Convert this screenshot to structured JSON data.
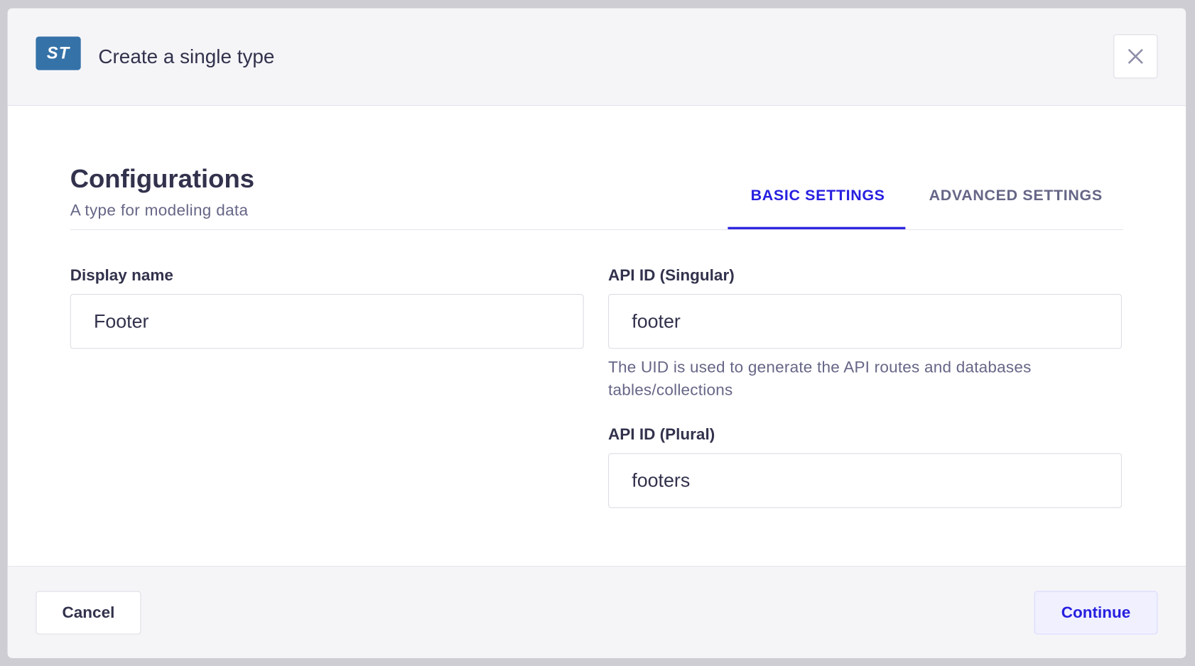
{
  "header": {
    "badge": "ST",
    "title": "Create a single type",
    "close_icon": "close-icon"
  },
  "section": {
    "title": "Configurations",
    "subtitle": "A type for modeling data"
  },
  "tabs": [
    {
      "label": "BASIC SETTINGS",
      "active": true
    },
    {
      "label": "ADVANCED SETTINGS",
      "active": false
    }
  ],
  "fields": {
    "display_name": {
      "label": "Display name",
      "value": "Footer"
    },
    "singular": {
      "label": "API ID (Singular)",
      "value": "footer",
      "help": "The UID is used to generate the API routes and databases tables/collections"
    },
    "plural": {
      "label": "API ID (Plural)",
      "value": "footers"
    }
  },
  "footer": {
    "cancel": "Cancel",
    "continue": "Continue"
  },
  "colors": {
    "accent": "#271fe0",
    "badge": "#3572a8"
  }
}
